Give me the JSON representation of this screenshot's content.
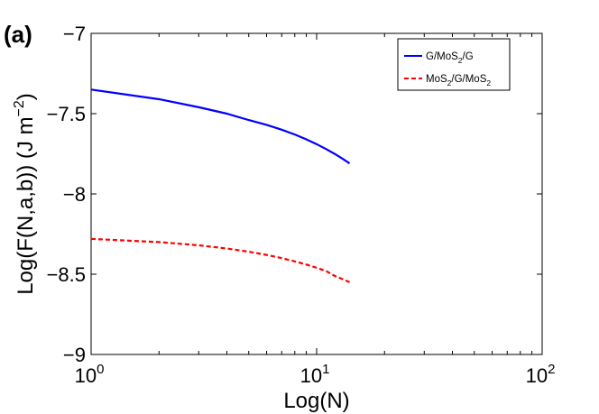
{
  "panel_label": "(a)",
  "chart_data": {
    "type": "line",
    "xscale": "log",
    "xlim": [
      1,
      100
    ],
    "ylim": [
      -9,
      -7
    ],
    "xlabel": "Log(N)",
    "ylabel": "Log(F(N,a,b)) (J m",
    "ylabel_sup": "−2",
    "ylabel_close": ")",
    "x_ticks": [
      {
        "value": 1,
        "base": "10",
        "exp": "0"
      },
      {
        "value": 10,
        "base": "10",
        "exp": "1"
      },
      {
        "value": 100,
        "base": "10",
        "exp": "2"
      }
    ],
    "y_ticks": [
      {
        "value": -7,
        "label": "−7"
      },
      {
        "value": -7.5,
        "label": "−7.5"
      },
      {
        "value": -8,
        "label": "−8"
      },
      {
        "value": -8.5,
        "label": "−8.5"
      },
      {
        "value": -9,
        "label": "−9"
      }
    ],
    "legend_position": "top-right",
    "series": [
      {
        "name_parts": [
          "G/MoS",
          "2",
          "/G"
        ],
        "color": "#0000ff",
        "dash": "solid",
        "x": [
          1,
          2,
          3,
          4,
          5,
          6,
          7,
          8,
          9,
          10,
          11,
          12,
          13,
          14
        ],
        "y": [
          -7.35,
          -7.41,
          -7.46,
          -7.5,
          -7.54,
          -7.57,
          -7.6,
          -7.63,
          -7.66,
          -7.69,
          -7.72,
          -7.75,
          -7.78,
          -7.81
        ]
      },
      {
        "name_parts": [
          "MoS",
          "2",
          "/G/MoS",
          "2"
        ],
        "color": "#ff0000",
        "dash": "dashed",
        "x": [
          1,
          2,
          3,
          4,
          5,
          6,
          7,
          8,
          9,
          10,
          11,
          12,
          13,
          14
        ],
        "y": [
          -8.28,
          -8.3,
          -8.32,
          -8.34,
          -8.36,
          -8.38,
          -8.4,
          -8.42,
          -8.44,
          -8.46,
          -8.48,
          -8.51,
          -8.53,
          -8.55
        ]
      }
    ]
  }
}
